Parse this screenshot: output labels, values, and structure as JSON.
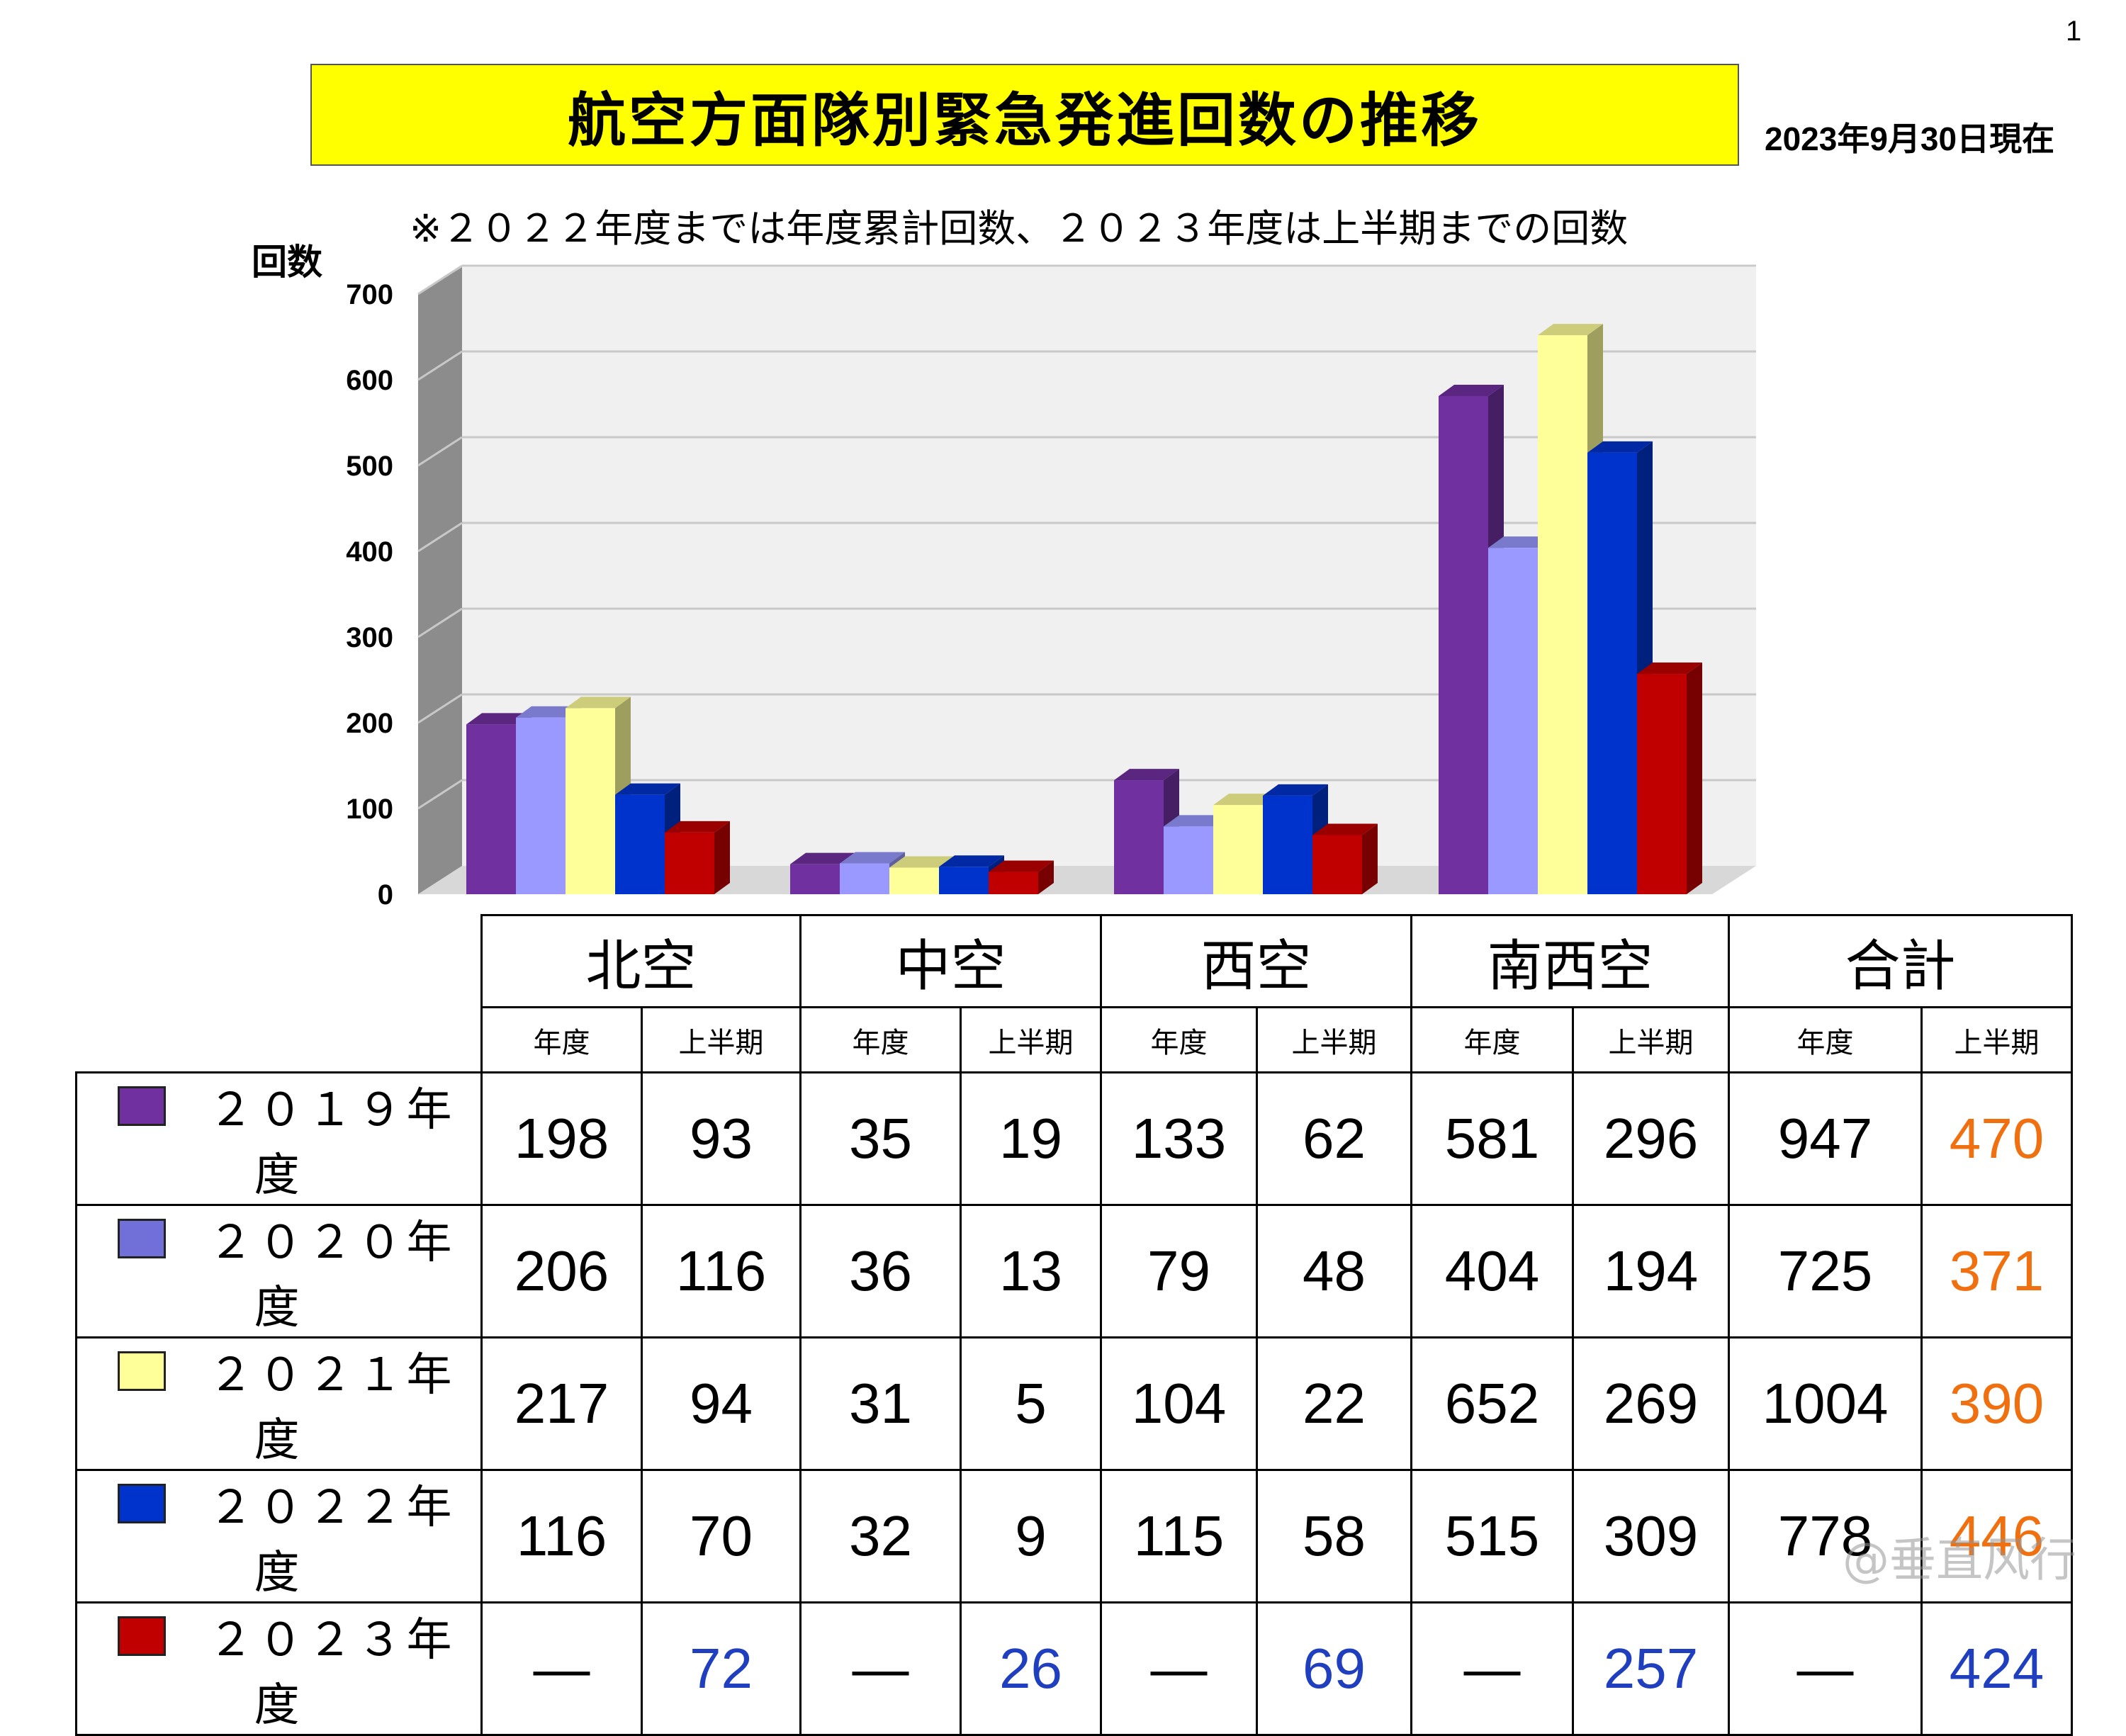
{
  "page_number": "1",
  "title": "航空方面隊別緊急発進回数の推移",
  "as_of": "2023年9月30日現在",
  "note": "※２０２２年度までは年度累計回数、２０２３年度は上半期までの回数",
  "watermark": "@垂直风行",
  "colors": {
    "2019": "#7030a0",
    "2020": "#9999ff",
    "2021": "#ffff99",
    "2022": "#0033cc",
    "2023": "#c00000",
    "total_half_past": "#f07010",
    "half_2023": "#1f3fbf",
    "title_bg": "#ffff00"
  },
  "chart_data": {
    "type": "bar",
    "ylabel": "回数",
    "ylim": [
      0,
      700
    ],
    "yticks": [
      "0",
      "100",
      "200",
      "300",
      "400",
      "500",
      "600",
      "700"
    ],
    "categories": [
      "北空",
      "中空",
      "西空",
      "南西空"
    ],
    "series": [
      {
        "name": "２０１９年度",
        "values": [
          198,
          35,
          133,
          581
        ]
      },
      {
        "name": "２０２０年度",
        "values": [
          206,
          36,
          79,
          404
        ]
      },
      {
        "name": "２０２１年度",
        "values": [
          217,
          31,
          104,
          652
        ]
      },
      {
        "name": "２０２２年度",
        "values": [
          116,
          32,
          115,
          515
        ]
      },
      {
        "name": "２０２３年度",
        "values": [
          72,
          26,
          69,
          257
        ]
      }
    ],
    "grid": true,
    "legend": "table-rows"
  },
  "table": {
    "groups": [
      "北空",
      "中空",
      "西空",
      "南西空",
      "合計"
    ],
    "sub_year": "年度",
    "sub_half": "上半期",
    "rows": [
      {
        "label": "２０１９年度",
        "cells": [
          "198",
          "93",
          "35",
          "19",
          "133",
          "62",
          "581",
          "296",
          "947",
          "470"
        ]
      },
      {
        "label": "２０２０年度",
        "cells": [
          "206",
          "116",
          "36",
          "13",
          "79",
          "48",
          "404",
          "194",
          "725",
          "371"
        ]
      },
      {
        "label": "２０２１年度",
        "cells": [
          "217",
          "94",
          "31",
          "5",
          "104",
          "22",
          "652",
          "269",
          "1004",
          "390"
        ]
      },
      {
        "label": "２０２２年度",
        "cells": [
          "116",
          "70",
          "32",
          "9",
          "115",
          "58",
          "515",
          "309",
          "778",
          "446"
        ]
      },
      {
        "label": "２０２３年度",
        "cells": [
          "—",
          "72",
          "—",
          "26",
          "—",
          "69",
          "—",
          "257",
          "—",
          "424"
        ]
      }
    ]
  }
}
